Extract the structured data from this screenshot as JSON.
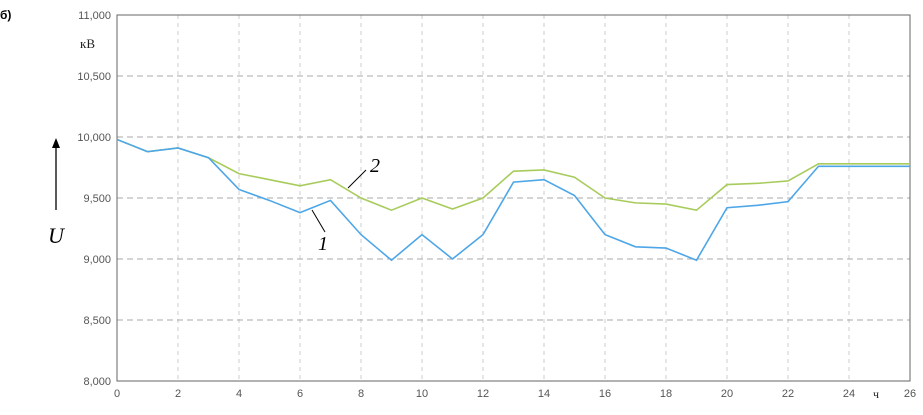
{
  "panel_label": "б)",
  "chart_data": {
    "type": "line",
    "ylabel": "U",
    "yunit": "кВ",
    "xunit": "ч",
    "xlim": [
      0,
      26
    ],
    "ylim": [
      8000,
      11000
    ],
    "grid": true,
    "xticks": [
      0,
      2,
      4,
      6,
      8,
      10,
      12,
      14,
      16,
      18,
      20,
      22,
      24,
      26
    ],
    "xtick_labels": [
      "0",
      "2",
      "4",
      "6",
      "8",
      "10",
      "12",
      "14",
      "16",
      "18",
      "20",
      "22",
      "24",
      "26"
    ],
    "yticks": [
      8000,
      8500,
      9000,
      9500,
      10000,
      10500,
      11000
    ],
    "ytick_labels": [
      "8,000",
      "8,500",
      "9,000",
      "9,500",
      "10,000",
      "10,500",
      "11,000"
    ],
    "x": [
      0,
      1,
      2,
      3,
      4,
      5,
      6,
      7,
      8,
      9,
      10,
      11,
      12,
      13,
      14,
      15,
      16,
      17,
      18,
      19,
      20,
      21,
      22,
      23,
      24,
      25,
      26
    ],
    "series": [
      {
        "name": "1",
        "color": "#4da6e8",
        "values": [
          9980,
          9880,
          9910,
          9830,
          9570,
          9480,
          9380,
          9480,
          9200,
          8990,
          9200,
          9000,
          9200,
          9630,
          9650,
          9520,
          9200,
          9100,
          9090,
          8990,
          9420,
          9440,
          9470,
          9760,
          9760,
          9760,
          9760
        ]
      },
      {
        "name": "2",
        "color": "#a8cc5c",
        "values": [
          9980,
          9880,
          9910,
          9830,
          9700,
          9650,
          9600,
          9650,
          9500,
          9400,
          9500,
          9410,
          9500,
          9720,
          9730,
          9670,
          9500,
          9460,
          9450,
          9400,
          9610,
          9620,
          9640,
          9780,
          9780,
          9780,
          9780
        ]
      }
    ]
  }
}
